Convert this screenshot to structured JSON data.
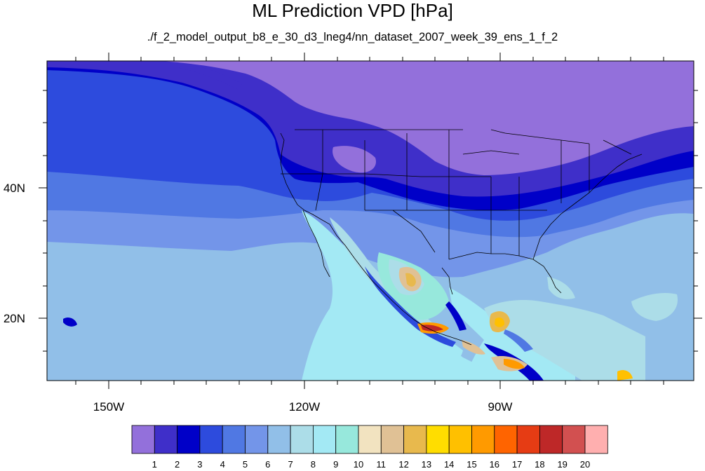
{
  "title": "ML Prediction VPD [hPa]",
  "subtitle": "./f_2_model_output_b8_e_30_d3_lneg4/nn_dataset_2007_week_39_ens_1_f_2",
  "map": {
    "lon_range": [
      -160,
      -60
    ],
    "lat_range": [
      10,
      59
    ],
    "x_tick_labels": [
      "150W",
      "120W",
      "90W"
    ],
    "y_tick_labels": [
      "40N",
      "20N"
    ]
  },
  "colorbar": {
    "labels": [
      "1",
      "2",
      "3",
      "4",
      "5",
      "6",
      "7",
      "8",
      "9",
      "10",
      "11",
      "12",
      "13",
      "14",
      "15",
      "16",
      "17",
      "18",
      "19",
      "20"
    ],
    "colors": [
      "#9370db",
      "#3f2fc9",
      "#0000c8",
      "#2d4bdd",
      "#5078e3",
      "#7395e9",
      "#91bfe8",
      "#acdde8",
      "#a3e9f4",
      "#97e8dc",
      "#f2e3c0",
      "#e0c195",
      "#e8b94d",
      "#ffdd00",
      "#ffc000",
      "#ff9a00",
      "#ff6400",
      "#e63c14",
      "#be2828",
      "#d25050",
      "#ffafaf"
    ]
  }
}
